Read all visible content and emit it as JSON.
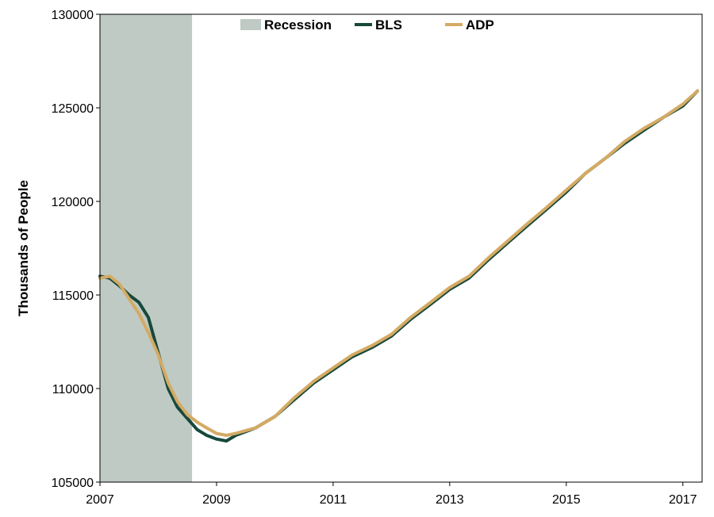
{
  "chart_data": {
    "type": "line",
    "title": "",
    "xlabel": "",
    "ylabel": "Thousands of People",
    "xlim": [
      2007,
      2017.33
    ],
    "ylim": [
      105000,
      130000
    ],
    "x_ticks": [
      2007,
      2009,
      2011,
      2013,
      2015,
      2017
    ],
    "x_tick_labels": [
      "2007",
      "2009",
      "2011",
      "2013",
      "2015",
      "2017"
    ],
    "y_ticks": [
      105000,
      110000,
      115000,
      120000,
      125000,
      130000
    ],
    "y_tick_labels": [
      "105000",
      "110000",
      "115000",
      "120000",
      "125000",
      "130000"
    ],
    "grid": false,
    "legend_position": "top-center",
    "recession": {
      "name": "Recession",
      "x_start": 2007.0,
      "x_end": 2008.58,
      "color": "#c0cac4"
    },
    "series": [
      {
        "name": "BLS",
        "color": "#16493b",
        "x": [
          2007.0,
          2007.17,
          2007.33,
          2007.5,
          2007.67,
          2007.83,
          2008.0,
          2008.17,
          2008.33,
          2008.5,
          2008.67,
          2008.83,
          2009.0,
          2009.17,
          2009.33,
          2009.67,
          2010.0,
          2010.33,
          2010.67,
          2011.0,
          2011.33,
          2011.67,
          2012.0,
          2012.33,
          2012.67,
          2013.0,
          2013.33,
          2013.67,
          2014.0,
          2014.33,
          2014.67,
          2015.0,
          2015.33,
          2015.67,
          2016.0,
          2016.33,
          2016.67,
          2017.0,
          2017.25
        ],
        "y": [
          116000,
          115900,
          115500,
          115000,
          114600,
          113800,
          111900,
          110000,
          109000,
          108400,
          107800,
          107500,
          107300,
          107200,
          107500,
          107900,
          108500,
          109400,
          110300,
          111000,
          111700,
          112200,
          112800,
          113700,
          114500,
          115300,
          115900,
          116900,
          117800,
          118700,
          119600,
          120500,
          121500,
          122300,
          123100,
          123800,
          124500,
          125100,
          125900
        ]
      },
      {
        "name": "ADP",
        "color": "#d4aa64",
        "x": [
          2007.0,
          2007.17,
          2007.33,
          2007.5,
          2007.67,
          2007.83,
          2008.0,
          2008.17,
          2008.33,
          2008.5,
          2008.67,
          2008.83,
          2009.0,
          2009.17,
          2009.33,
          2009.67,
          2010.0,
          2010.33,
          2010.67,
          2011.0,
          2011.33,
          2011.67,
          2012.0,
          2012.33,
          2012.67,
          2013.0,
          2013.33,
          2013.67,
          2014.0,
          2014.33,
          2014.67,
          2015.0,
          2015.33,
          2015.67,
          2016.0,
          2016.33,
          2016.67,
          2017.0,
          2017.25
        ],
        "y": [
          115900,
          116000,
          115600,
          114800,
          114000,
          113000,
          111800,
          110300,
          109300,
          108600,
          108200,
          107900,
          107600,
          107500,
          107600,
          107900,
          108500,
          109500,
          110400,
          111100,
          111800,
          112300,
          112900,
          113800,
          114600,
          115400,
          116000,
          117000,
          117900,
          118800,
          119700,
          120600,
          121500,
          122300,
          123200,
          123900,
          124500,
          125200,
          125900
        ]
      }
    ]
  }
}
